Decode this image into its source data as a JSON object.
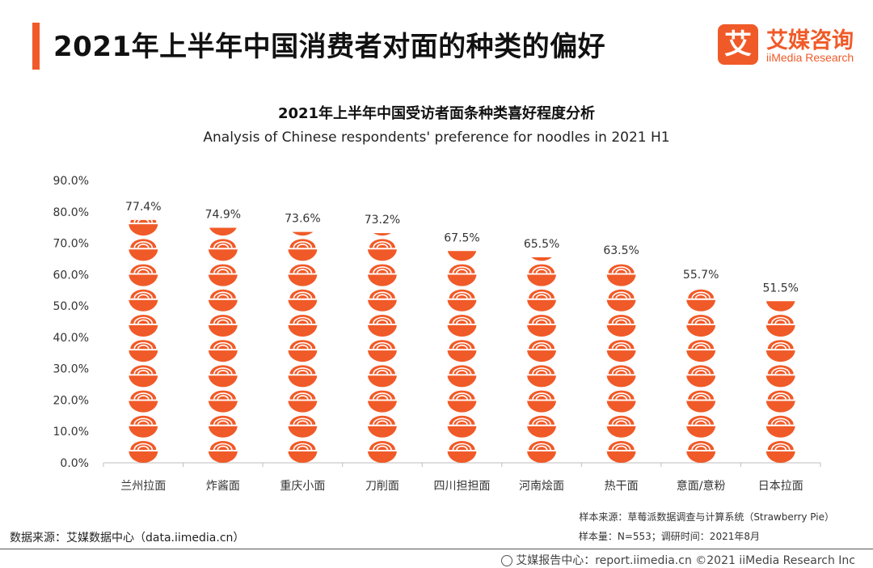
{
  "header": {
    "title": "2021年上半年中国消费者对面的种类的偏好",
    "logo_cn": "艾媒咨询",
    "logo_en": "iiMedia Research",
    "logo_mark": "艾"
  },
  "chart_data": {
    "type": "bar",
    "title": "2021年上半年中国受访者面条种类喜好程度分析",
    "subtitle": "Analysis of Chinese respondents' preference for noodles in 2021 H1",
    "categories": [
      "兰州拉面",
      "炸酱面",
      "重庆小面",
      "刀削面",
      "四川担担面",
      "河南烩面",
      "热干面",
      "意面/意粉",
      "日本拉面"
    ],
    "values": [
      77.4,
      74.9,
      73.6,
      73.2,
      67.5,
      65.5,
      63.5,
      55.7,
      51.5
    ],
    "value_labels": [
      "77.4%",
      "74.9%",
      "73.6%",
      "73.2%",
      "67.5%",
      "65.5%",
      "63.5%",
      "55.7%",
      "51.5%"
    ],
    "yticks": [
      "0.0%",
      "10.0%",
      "20.0%",
      "30.0%",
      "40.0%",
      "50.0%",
      "60.0%",
      "70.0%",
      "80.0%",
      "90.0%"
    ],
    "ylim": [
      0,
      90
    ],
    "grid": false,
    "mark": "noodle-bowl-icon",
    "color": "#f05a28"
  },
  "notes": {
    "sample_source": "样本来源：草莓派数据调查与计算系统（Strawberry Pie）",
    "sample_size": "样本量：N=553；调研时间：2021年8月",
    "data_source": "数据来源：艾媒数据中心（data.iimedia.cn）"
  },
  "footer": {
    "text": "艾媒报告中心：report.iimedia.cn ©2021  iiMedia Research  Inc"
  }
}
